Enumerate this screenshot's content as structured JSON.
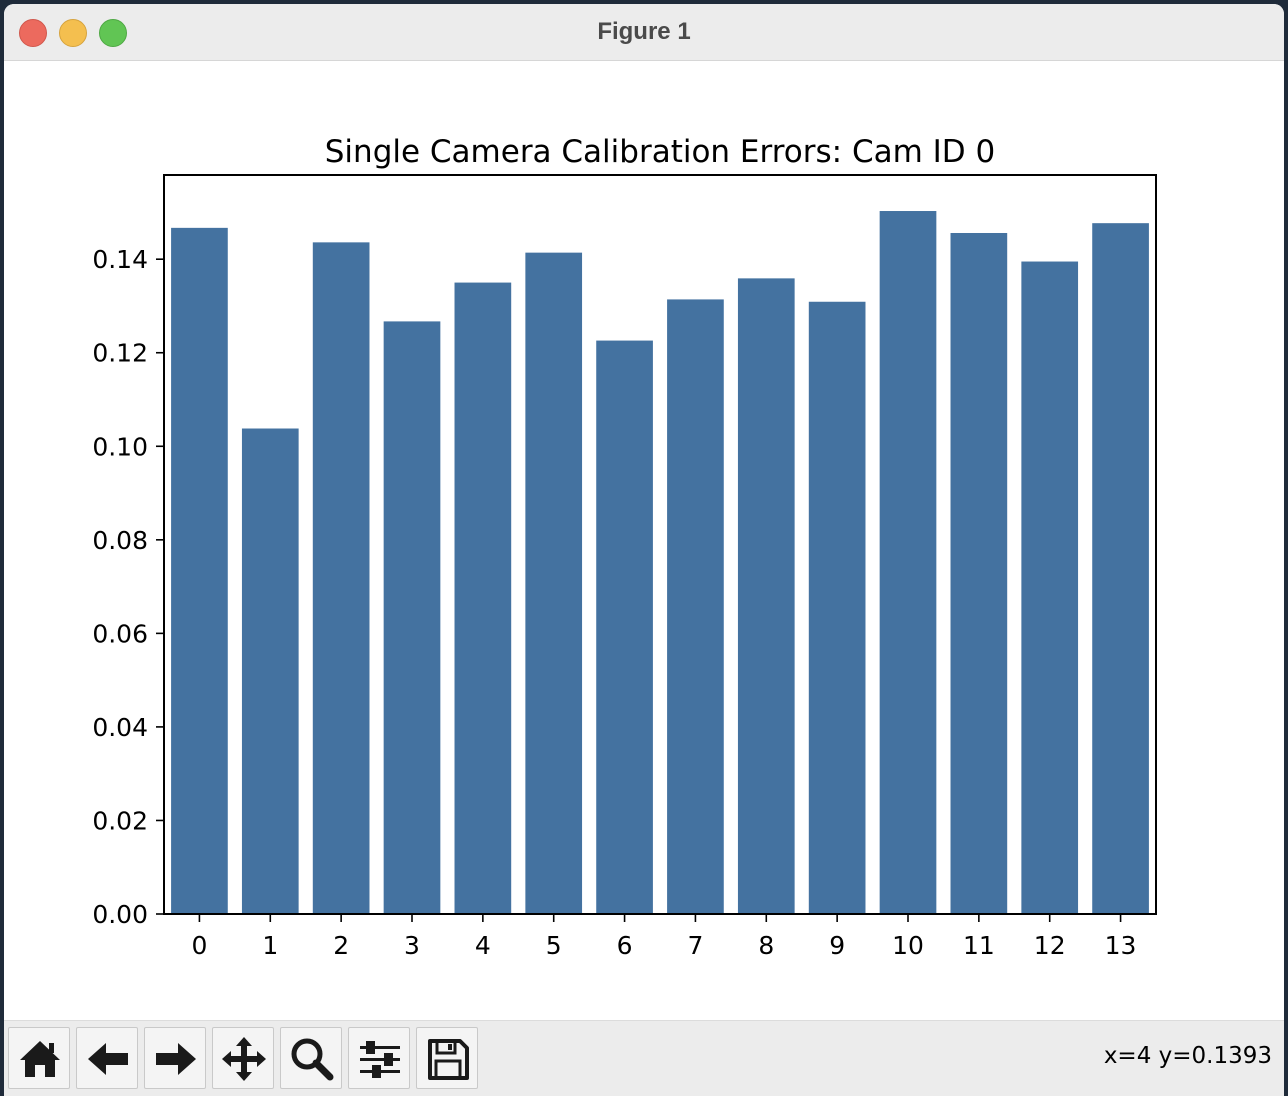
{
  "window": {
    "title": "Figure 1"
  },
  "toolbar": {
    "buttons": [
      {
        "name": "home-button",
        "icon": "home-icon"
      },
      {
        "name": "back-button",
        "icon": "arrow-left-icon"
      },
      {
        "name": "forward-button",
        "icon": "arrow-right-icon"
      },
      {
        "name": "pan-button",
        "icon": "move-icon"
      },
      {
        "name": "zoom-button",
        "icon": "magnifier-icon"
      },
      {
        "name": "configure-subplots-button",
        "icon": "sliders-icon"
      },
      {
        "name": "save-button",
        "icon": "floppy-disk-icon"
      }
    ],
    "coords": "x=4 y=0.1393"
  },
  "chart_data": {
    "type": "bar",
    "title": "Single Camera Calibration Errors: Cam ID 0",
    "xlabel": "",
    "ylabel": "",
    "categories": [
      "0",
      "1",
      "2",
      "3",
      "4",
      "5",
      "6",
      "7",
      "8",
      "9",
      "10",
      "11",
      "12",
      "13"
    ],
    "values": [
      0.1467,
      0.1038,
      0.1436,
      0.1267,
      0.135,
      0.1414,
      0.1226,
      0.1314,
      0.1359,
      0.1309,
      0.1503,
      0.1456,
      0.1395,
      0.1477
    ],
    "ylim": [
      0,
      0.158
    ],
    "yticks": [
      "0.00",
      "0.02",
      "0.04",
      "0.06",
      "0.08",
      "0.10",
      "0.12",
      "0.14"
    ],
    "bar_color": "#4472a0",
    "grid": false,
    "legend": "none"
  }
}
